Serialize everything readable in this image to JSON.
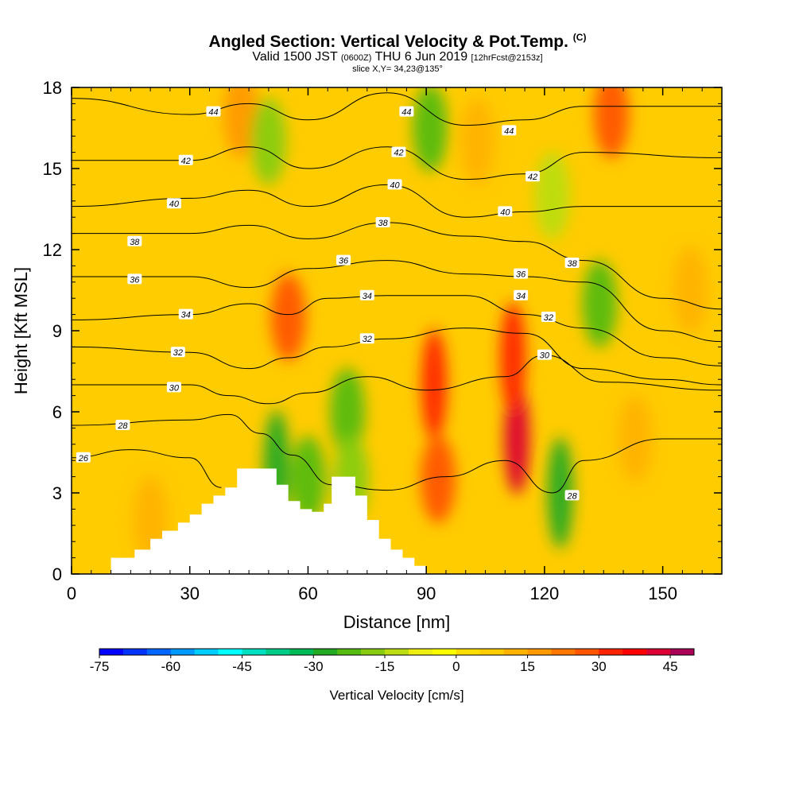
{
  "header": {
    "title": "Angled Section: Vertical Velocity & Pot.Temp.",
    "title_mark": "(C)",
    "valid_prefix": "Valid 1500 JST",
    "valid_utc": "(0600Z)",
    "valid_date": "THU 6 Jun 2019",
    "forecast": "[12hrFcst@2153z]",
    "slice": "slice X,Y= 34,23@135°"
  },
  "chart_data": {
    "type": "heatmap",
    "xlabel": "Distance [nm]",
    "ylabel": "Height [Kft MSL]",
    "xlim": [
      0,
      165
    ],
    "ylim": [
      0,
      18
    ],
    "x_ticks": [
      0,
      30,
      60,
      90,
      120,
      150
    ],
    "y_ticks": [
      0,
      3,
      6,
      9,
      12,
      15,
      18
    ],
    "grid": false,
    "terrain_profile": [
      [
        10,
        0.6
      ],
      [
        13,
        0.6
      ],
      [
        16,
        0.9
      ],
      [
        20,
        1.3
      ],
      [
        23,
        1.6
      ],
      [
        27,
        1.9
      ],
      [
        30,
        2.2
      ],
      [
        33,
        2.6
      ],
      [
        36,
        2.9
      ],
      [
        39,
        3.2
      ],
      [
        42,
        3.9
      ],
      [
        45,
        3.9
      ],
      [
        48,
        3.9
      ],
      [
        52,
        3.3
      ],
      [
        55,
        2.7
      ],
      [
        58,
        2.4
      ],
      [
        61,
        2.3
      ],
      [
        64,
        2.6
      ],
      [
        66,
        3.6
      ],
      [
        70,
        3.6
      ],
      [
        72,
        2.9
      ],
      [
        75,
        2.0
      ],
      [
        78,
        1.3
      ],
      [
        81,
        0.9
      ],
      [
        84,
        0.6
      ],
      [
        87,
        0.3
      ],
      [
        90,
        0.0
      ]
    ],
    "velocity_cells": [
      {
        "x": 43,
        "y": 17.0,
        "value": 15
      },
      {
        "x": 50,
        "y": 16.0,
        "value": -20
      },
      {
        "x": 55,
        "y": 9.5,
        "value": 25
      },
      {
        "x": 52,
        "y": 4.0,
        "value": -30
      },
      {
        "x": 60,
        "y": 3.5,
        "value": -25
      },
      {
        "x": 70,
        "y": 6.0,
        "value": -25
      },
      {
        "x": 71,
        "y": 3.5,
        "value": -20
      },
      {
        "x": 92,
        "y": 7.0,
        "value": 30
      },
      {
        "x": 93,
        "y": 3.5,
        "value": 25
      },
      {
        "x": 91,
        "y": 16.5,
        "value": -25
      },
      {
        "x": 103,
        "y": 16.0,
        "value": 10
      },
      {
        "x": 113,
        "y": 5.0,
        "value": 40
      },
      {
        "x": 112,
        "y": 8.0,
        "value": 30
      },
      {
        "x": 124,
        "y": 3.0,
        "value": -30
      },
      {
        "x": 122,
        "y": 14.0,
        "value": -15
      },
      {
        "x": 134,
        "y": 10.0,
        "value": -25
      },
      {
        "x": 137,
        "y": 17.0,
        "value": 25
      },
      {
        "x": 143,
        "y": 5.0,
        "value": 10
      },
      {
        "x": 157,
        "y": 10.5,
        "value": 10
      },
      {
        "x": 20,
        "y": 2.0,
        "value": 10
      }
    ],
    "theta_contours": [
      {
        "label": "44",
        "points": [
          [
            0,
            17.6
          ],
          [
            30,
            17.0
          ],
          [
            45,
            17.4
          ],
          [
            60,
            16.8
          ],
          [
            80,
            17.8
          ],
          [
            100,
            16.6
          ],
          [
            115,
            16.8
          ],
          [
            130,
            17.3
          ],
          [
            165,
            17.3
          ]
        ]
      },
      {
        "label": "42",
        "points": [
          [
            0,
            15.3
          ],
          [
            30,
            15.3
          ],
          [
            45,
            15.8
          ],
          [
            60,
            15.0
          ],
          [
            80,
            15.8
          ],
          [
            100,
            14.6
          ],
          [
            115,
            14.8
          ],
          [
            130,
            15.6
          ],
          [
            165,
            15.4
          ]
        ]
      },
      {
        "label": "40",
        "points": [
          [
            0,
            13.6
          ],
          [
            30,
            13.9
          ],
          [
            45,
            14.2
          ],
          [
            60,
            13.6
          ],
          [
            80,
            14.4
          ],
          [
            100,
            13.2
          ],
          [
            115,
            13.4
          ],
          [
            130,
            13.6
          ],
          [
            165,
            13.6
          ]
        ]
      },
      {
        "label": "38",
        "points": [
          [
            0,
            12.6
          ],
          [
            30,
            12.6
          ],
          [
            45,
            12.9
          ],
          [
            60,
            12.4
          ],
          [
            80,
            13.0
          ],
          [
            100,
            12.5
          ],
          [
            115,
            12.3
          ],
          [
            130,
            11.6
          ],
          [
            150,
            10.2
          ],
          [
            165,
            9.8
          ]
        ]
      },
      {
        "label": "36",
        "points": [
          [
            0,
            11.0
          ],
          [
            30,
            11.0
          ],
          [
            45,
            10.6
          ],
          [
            60,
            11.3
          ],
          [
            80,
            11.6
          ],
          [
            100,
            11.1
          ],
          [
            115,
            11.0
          ],
          [
            130,
            10.8
          ],
          [
            150,
            9.0
          ],
          [
            165,
            8.6
          ]
        ]
      },
      {
        "label": "34",
        "points": [
          [
            0,
            9.4
          ],
          [
            30,
            9.6
          ],
          [
            45,
            10.0
          ],
          [
            55,
            9.6
          ],
          [
            65,
            10.2
          ],
          [
            80,
            10.3
          ],
          [
            100,
            10.3
          ],
          [
            115,
            9.6
          ],
          [
            130,
            9.1
          ],
          [
            150,
            8.0
          ],
          [
            165,
            7.7
          ]
        ]
      },
      {
        "label": "32",
        "points": [
          [
            0,
            8.4
          ],
          [
            30,
            8.2
          ],
          [
            45,
            7.6
          ],
          [
            55,
            8.0
          ],
          [
            65,
            8.4
          ],
          [
            80,
            8.7
          ],
          [
            100,
            9.1
          ],
          [
            115,
            8.9
          ],
          [
            130,
            7.6
          ],
          [
            150,
            7.2
          ],
          [
            165,
            7.0
          ]
        ]
      },
      {
        "label": "30",
        "points": [
          [
            0,
            7.0
          ],
          [
            30,
            7.0
          ],
          [
            40,
            6.6
          ],
          [
            50,
            6.3
          ],
          [
            60,
            6.7
          ],
          [
            75,
            7.3
          ],
          [
            90,
            6.8
          ],
          [
            110,
            7.3
          ],
          [
            120,
            8.1
          ],
          [
            135,
            7.1
          ],
          [
            165,
            6.8
          ]
        ]
      },
      {
        "label": "28",
        "points": [
          [
            0,
            5.5
          ],
          [
            30,
            5.7
          ],
          [
            40,
            5.9
          ],
          [
            48,
            5.2
          ],
          [
            56,
            4.4
          ],
          [
            66,
            3.3
          ],
          [
            80,
            3.1
          ],
          [
            95,
            3.6
          ],
          [
            110,
            4.2
          ],
          [
            122,
            3.0
          ],
          [
            130,
            4.2
          ],
          [
            150,
            5.0
          ],
          [
            165,
            5.0
          ]
        ]
      },
      {
        "label": "26",
        "points": [
          [
            0,
            4.3
          ],
          [
            15,
            4.6
          ],
          [
            30,
            4.3
          ],
          [
            38,
            3.2
          ]
        ]
      }
    ],
    "contour_labels": [
      {
        "text": "44",
        "x": 36,
        "y": 17.1
      },
      {
        "text": "44",
        "x": 85,
        "y": 17.1
      },
      {
        "text": "44",
        "x": 111,
        "y": 16.4
      },
      {
        "text": "42",
        "x": 29,
        "y": 15.3
      },
      {
        "text": "42",
        "x": 83,
        "y": 15.6
      },
      {
        "text": "42",
        "x": 117,
        "y": 14.7
      },
      {
        "text": "40",
        "x": 26,
        "y": 13.7
      },
      {
        "text": "40",
        "x": 82,
        "y": 14.4
      },
      {
        "text": "40",
        "x": 110,
        "y": 13.4
      },
      {
        "text": "38",
        "x": 16,
        "y": 12.3
      },
      {
        "text": "38",
        "x": 79,
        "y": 13.0
      },
      {
        "text": "38",
        "x": 127,
        "y": 11.5
      },
      {
        "text": "36",
        "x": 16,
        "y": 10.9
      },
      {
        "text": "36",
        "x": 69,
        "y": 11.6
      },
      {
        "text": "36",
        "x": 114,
        "y": 11.1
      },
      {
        "text": "34",
        "x": 29,
        "y": 9.6
      },
      {
        "text": "34",
        "x": 75,
        "y": 10.3
      },
      {
        "text": "34",
        "x": 114,
        "y": 10.3
      },
      {
        "text": "32",
        "x": 27,
        "y": 8.2
      },
      {
        "text": "32",
        "x": 75,
        "y": 8.7
      },
      {
        "text": "32",
        "x": 121,
        "y": 9.5
      },
      {
        "text": "30",
        "x": 26,
        "y": 6.9
      },
      {
        "text": "30",
        "x": 120,
        "y": 8.1
      },
      {
        "text": "28",
        "x": 13,
        "y": 5.5
      },
      {
        "text": "28",
        "x": 127,
        "y": 2.9
      },
      {
        "text": "26",
        "x": 3,
        "y": 4.3
      }
    ]
  },
  "colorbar": {
    "title": "Vertical Velocity [cm/s]",
    "tick_labels": [
      "-75",
      "-60",
      "-45",
      "-30",
      "-15",
      "0",
      "15",
      "30",
      "45"
    ],
    "tick_values": [
      -75,
      -60,
      -45,
      -30,
      -15,
      0,
      15,
      30,
      45
    ],
    "range": [
      -75,
      50
    ],
    "step": 5,
    "colors": [
      "#0000ff",
      "#0033ff",
      "#0066ff",
      "#0099ff",
      "#00ccff",
      "#00ffff",
      "#00e0c0",
      "#00cc88",
      "#00bb55",
      "#22aa22",
      "#55bb11",
      "#88cc11",
      "#bbdd11",
      "#eeee11",
      "#ffff00",
      "#ffdd00",
      "#ffcc00",
      "#ffb300",
      "#ff9900",
      "#ff7700",
      "#ff5500",
      "#ff2200",
      "#ff0000",
      "#dd0033",
      "#aa0055"
    ]
  }
}
